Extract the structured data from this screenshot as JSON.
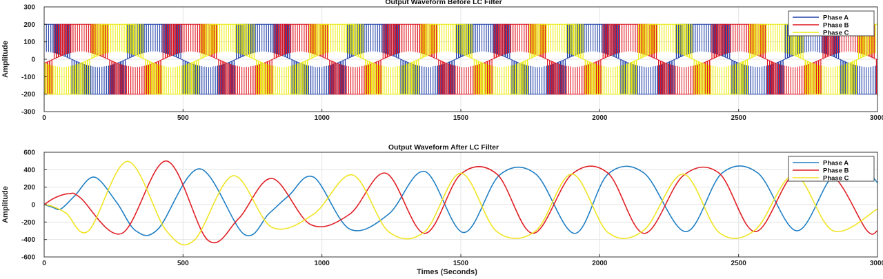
{
  "chart_data": [
    {
      "type": "line",
      "title": "Output Waveform Before LC Filter",
      "xlabel": "",
      "ylabel": "Amplitude",
      "xlim": [
        0,
        3000
      ],
      "ylim": [
        -300,
        300
      ],
      "xticks": [
        0,
        500,
        1000,
        1500,
        2000,
        2500,
        3000
      ],
      "yticks": [
        -300,
        -200,
        -100,
        0,
        100,
        200,
        300
      ],
      "grid": true,
      "legend_position": "top-right",
      "waveform": "pwm",
      "switching_period": 8,
      "period": 395,
      "envelope_level": 200,
      "fundamental_amplitude": 45,
      "series": [
        {
          "name": "Phase A",
          "color": "#2040a8",
          "phase_deg": 90
        },
        {
          "name": "Phase B",
          "color": "#e0141e",
          "phase_deg": -30
        },
        {
          "name": "Phase C",
          "color": "#ecec0c",
          "phase_deg": 210
        }
      ]
    },
    {
      "type": "line",
      "title": "Output Waveform After LC Filter",
      "xlabel": "Times (Seconds)",
      "ylabel": "Amplitude",
      "xlim": [
        0,
        3000
      ],
      "ylim": [
        -600,
        600
      ],
      "xticks": [
        0,
        500,
        1000,
        1500,
        2000,
        2500,
        3000
      ],
      "yticks": [
        -600,
        -400,
        -200,
        0,
        200,
        400,
        600
      ],
      "grid": true,
      "legend_position": "top-right",
      "series": [
        {
          "name": "Phase A",
          "color": "#1f7fc4",
          "x": [
            0,
            30,
            60,
            110,
            180,
            260,
            330,
            410,
            560,
            720,
            810,
            880,
            970,
            1100,
            1240,
            1370,
            1510,
            1640,
            1770,
            1910,
            2030,
            2160,
            2310,
            2440,
            2570,
            2710,
            2840,
            2960,
            3000
          ],
          "y": [
            0,
            -30,
            -50,
            100,
            315,
            30,
            -300,
            -280,
            410,
            -340,
            -100,
            100,
            315,
            -280,
            -110,
            380,
            -320,
            340,
            350,
            -330,
            350,
            360,
            -310,
            360,
            360,
            -300,
            330,
            350,
            250
          ]
        },
        {
          "name": "Phase B",
          "color": "#e01f24",
          "x": [
            0,
            40,
            90,
            130,
            280,
            440,
            590,
            700,
            820,
            960,
            1100,
            1230,
            1370,
            1500,
            1630,
            1760,
            1900,
            2030,
            2160,
            2300,
            2430,
            2560,
            2700,
            2840,
            2960,
            3000
          ],
          "y": [
            0,
            80,
            125,
            80,
            -330,
            500,
            -410,
            -160,
            300,
            -230,
            -110,
            360,
            -330,
            350,
            350,
            -330,
            350,
            360,
            -330,
            330,
            360,
            -310,
            360,
            330,
            -290,
            -300
          ]
        },
        {
          "name": "Phase C",
          "color": "#f0e422",
          "x": [
            0,
            30,
            80,
            160,
            300,
            440,
            540,
            680,
            820,
            970,
            1110,
            1240,
            1370,
            1500,
            1630,
            1770,
            1900,
            2030,
            2160,
            2300,
            2430,
            2560,
            2700,
            2840,
            3000
          ],
          "y": [
            0,
            -20,
            -100,
            -300,
            495,
            -300,
            -410,
            330,
            -260,
            -110,
            340,
            -310,
            -310,
            360,
            -310,
            -300,
            350,
            -320,
            -290,
            350,
            -320,
            -290,
            340,
            -300,
            -50
          ]
        }
      ]
    }
  ]
}
